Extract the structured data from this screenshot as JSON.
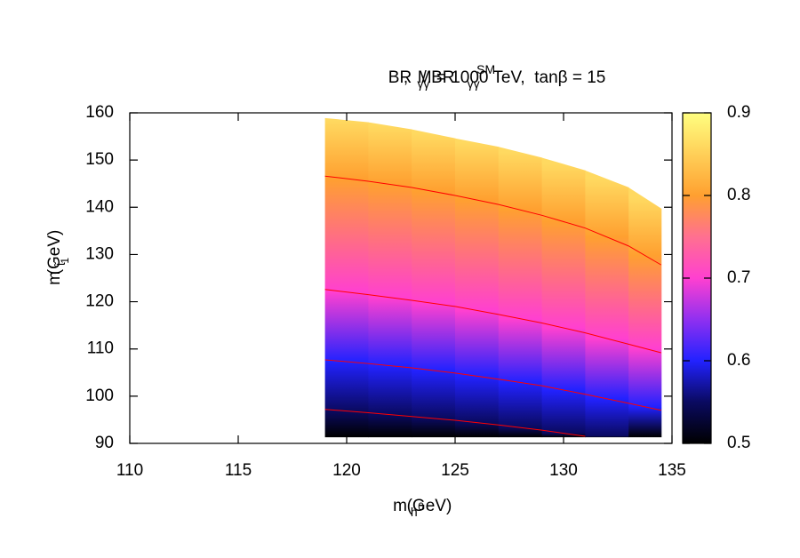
{
  "chart_data": {
    "type": "heatmap",
    "title_parts": [
      {
        "text": "BR"
      },
      {
        "text": "γγ",
        "shift": "sub"
      },
      {
        "text": " / BR"
      },
      {
        "text": "γγ",
        "shift": "sub"
      },
      {
        "text": "SM",
        "shift": "sup"
      },
      {
        "text": ",  M = 1000 TeV,  tanβ = 15"
      }
    ],
    "xlabel_parts": [
      {
        "text": "m"
      },
      {
        "text": "h",
        "shift": "sub"
      },
      {
        "text": "0",
        "shift": "subsup"
      },
      {
        "text": " (GeV)"
      }
    ],
    "ylabel_parts": [
      {
        "text": "m"
      },
      {
        "text": "t̃",
        "shift": "sub"
      },
      {
        "text": "1",
        "shift": "subsub"
      },
      {
        "text": " (GeV)"
      }
    ],
    "x": [
      119,
      121,
      123,
      125,
      127,
      129,
      131,
      133,
      134.5
    ],
    "region": {
      "top": [
        158.9,
        158.0,
        156.5,
        154.6,
        152.8,
        150.5,
        147.8,
        144.2,
        139.7
      ],
      "bottom": [
        91.3,
        91.3,
        91.3,
        91.3,
        91.3,
        91.3,
        91.3,
        91.3,
        91.3
      ],
      "top_level": 0.86,
      "bottom_level": 0.5
    },
    "contours": [
      {
        "level": 0.55,
        "values": [
          97.2,
          96.5,
          95.7,
          94.9,
          93.9,
          92.8,
          91.5,
          null,
          null
        ]
      },
      {
        "level": 0.6,
        "values": [
          107.7,
          106.9,
          106.0,
          104.9,
          103.6,
          102.2,
          100.4,
          98.5,
          97.0
        ]
      },
      {
        "level": 0.7,
        "values": [
          122.6,
          121.5,
          120.3,
          119.0,
          117.3,
          115.5,
          113.4,
          111.0,
          109.2
        ]
      },
      {
        "level": 0.8,
        "values": [
          146.6,
          145.5,
          144.2,
          142.5,
          140.6,
          138.3,
          135.6,
          131.8,
          127.8
        ]
      }
    ],
    "contour_color": "#ff0000",
    "xlim": [
      110,
      135
    ],
    "xticks": [
      110,
      115,
      120,
      125,
      130,
      135
    ],
    "ylim": [
      90,
      160
    ],
    "yticks": [
      90,
      100,
      110,
      120,
      130,
      140,
      150,
      160
    ],
    "clim": [
      0.5,
      0.9
    ],
    "cticks": [
      0.5,
      0.6,
      0.7,
      0.8,
      0.9
    ],
    "palette": [
      {
        "value": 0.5,
        "color": "#000000"
      },
      {
        "value": 0.55,
        "color": "#0a0a60"
      },
      {
        "value": 0.6,
        "color": "#2222ff"
      },
      {
        "value": 0.65,
        "color": "#9030f0"
      },
      {
        "value": 0.7,
        "color": "#ff40d0"
      },
      {
        "value": 0.75,
        "color": "#ff7090"
      },
      {
        "value": 0.8,
        "color": "#ffa030"
      },
      {
        "value": 0.9,
        "color": "#ffff80"
      }
    ]
  }
}
